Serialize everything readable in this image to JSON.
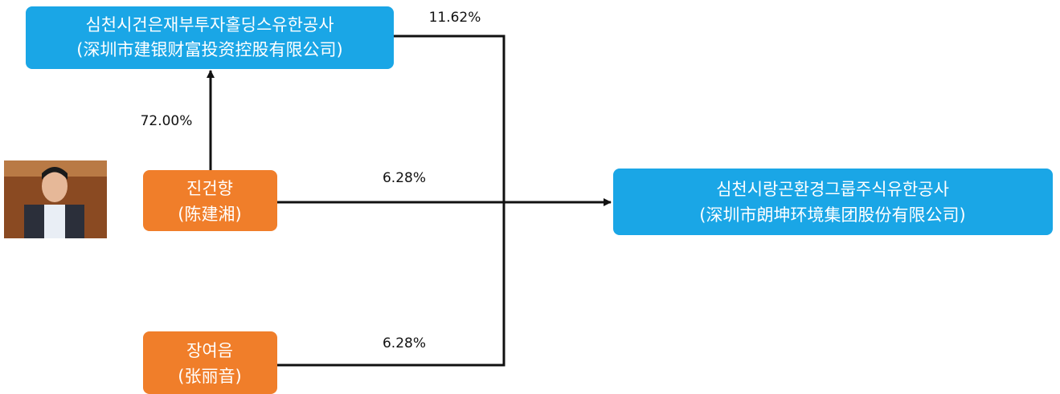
{
  "nodes": [
    {
      "label": "심천시건은재부투자홀딩스유한공사",
      "sublabel": "(深圳市建银财富投资控股有限公司)"
    },
    {
      "label": "진건향",
      "sublabel": "(陈建湘)"
    },
    {
      "label": "장여음",
      "sublabel": "(张丽音)"
    },
    {
      "label": "심천시랑곤환경그룹주식유한공사",
      "sublabel": "(深圳市朗坤环境集团股份有限公司)"
    }
  ],
  "edges": [
    {
      "label": "72.00%"
    },
    {
      "label": "11.62%"
    },
    {
      "label": "6.28%"
    },
    {
      "label": "6.28%"
    }
  ]
}
